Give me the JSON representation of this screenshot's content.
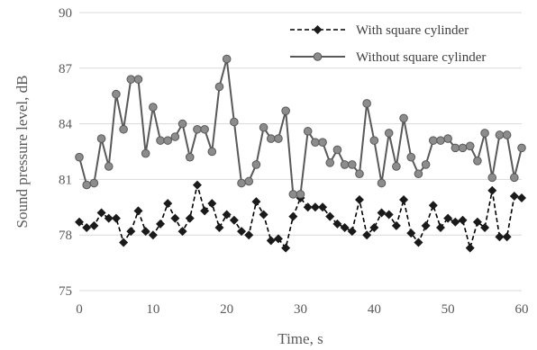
{
  "chart_data": {
    "type": "line",
    "title": "",
    "xlabel": "Time, s",
    "ylabel": "Sound pressure level, dB",
    "xlim": [
      0,
      60
    ],
    "ylim": [
      75,
      90
    ],
    "xticks": [
      0,
      10,
      20,
      30,
      40,
      50,
      60
    ],
    "yticks": [
      75,
      78,
      81,
      84,
      87,
      90
    ],
    "x": [
      0,
      1,
      2,
      3,
      4,
      5,
      6,
      7,
      8,
      9,
      10,
      11,
      12,
      13,
      14,
      15,
      16,
      17,
      18,
      19,
      20,
      21,
      22,
      23,
      24,
      25,
      26,
      27,
      28,
      29,
      30,
      31,
      32,
      33,
      34,
      35,
      36,
      37,
      38,
      39,
      40,
      41,
      42,
      43,
      44,
      45,
      46,
      47,
      48,
      49,
      50,
      51,
      52,
      53,
      54,
      55,
      56,
      57,
      58,
      59,
      60
    ],
    "grid": true,
    "legend": "top-right",
    "series": [
      {
        "name": "With square cylinder",
        "color": "#000000",
        "line_style": "dashed",
        "marker": "diamond",
        "values": [
          78.7,
          78.4,
          78.5,
          79.2,
          78.9,
          78.9,
          77.6,
          78.2,
          79.3,
          78.2,
          78.0,
          78.6,
          79.7,
          78.9,
          78.2,
          78.9,
          80.7,
          79.3,
          79.7,
          78.4,
          79.1,
          78.8,
          78.2,
          78.0,
          79.8,
          79.1,
          77.7,
          77.8,
          77.3,
          79.0,
          80.0,
          79.5,
          79.5,
          79.5,
          79.0,
          78.6,
          78.4,
          78.2,
          79.9,
          78.0,
          78.4,
          79.2,
          79.1,
          78.5,
          79.9,
          78.1,
          77.6,
          78.5,
          79.6,
          78.4,
          78.9,
          78.7,
          78.8,
          77.3,
          78.7,
          78.4,
          80.4,
          77.9,
          77.9,
          80.1,
          80.0
        ]
      },
      {
        "name": "Without square cylinder",
        "color": "#595959",
        "line_style": "solid",
        "marker": "circle",
        "values": [
          82.2,
          80.7,
          80.8,
          83.2,
          81.7,
          85.6,
          83.7,
          86.4,
          86.4,
          82.4,
          84.9,
          83.1,
          83.1,
          83.3,
          84.0,
          82.2,
          83.7,
          83.7,
          82.5,
          86.0,
          87.5,
          84.1,
          80.8,
          80.9,
          81.8,
          83.8,
          83.2,
          83.2,
          84.7,
          80.2,
          80.2,
          83.6,
          83.0,
          83.0,
          81.9,
          82.6,
          81.8,
          81.8,
          81.3,
          85.1,
          83.1,
          80.8,
          83.5,
          81.7,
          84.3,
          82.2,
          81.3,
          81.8,
          83.1,
          83.1,
          83.2,
          82.7,
          82.7,
          82.8,
          82.0,
          83.5,
          81.1,
          83.4,
          83.4,
          81.1,
          82.7
        ]
      }
    ]
  }
}
